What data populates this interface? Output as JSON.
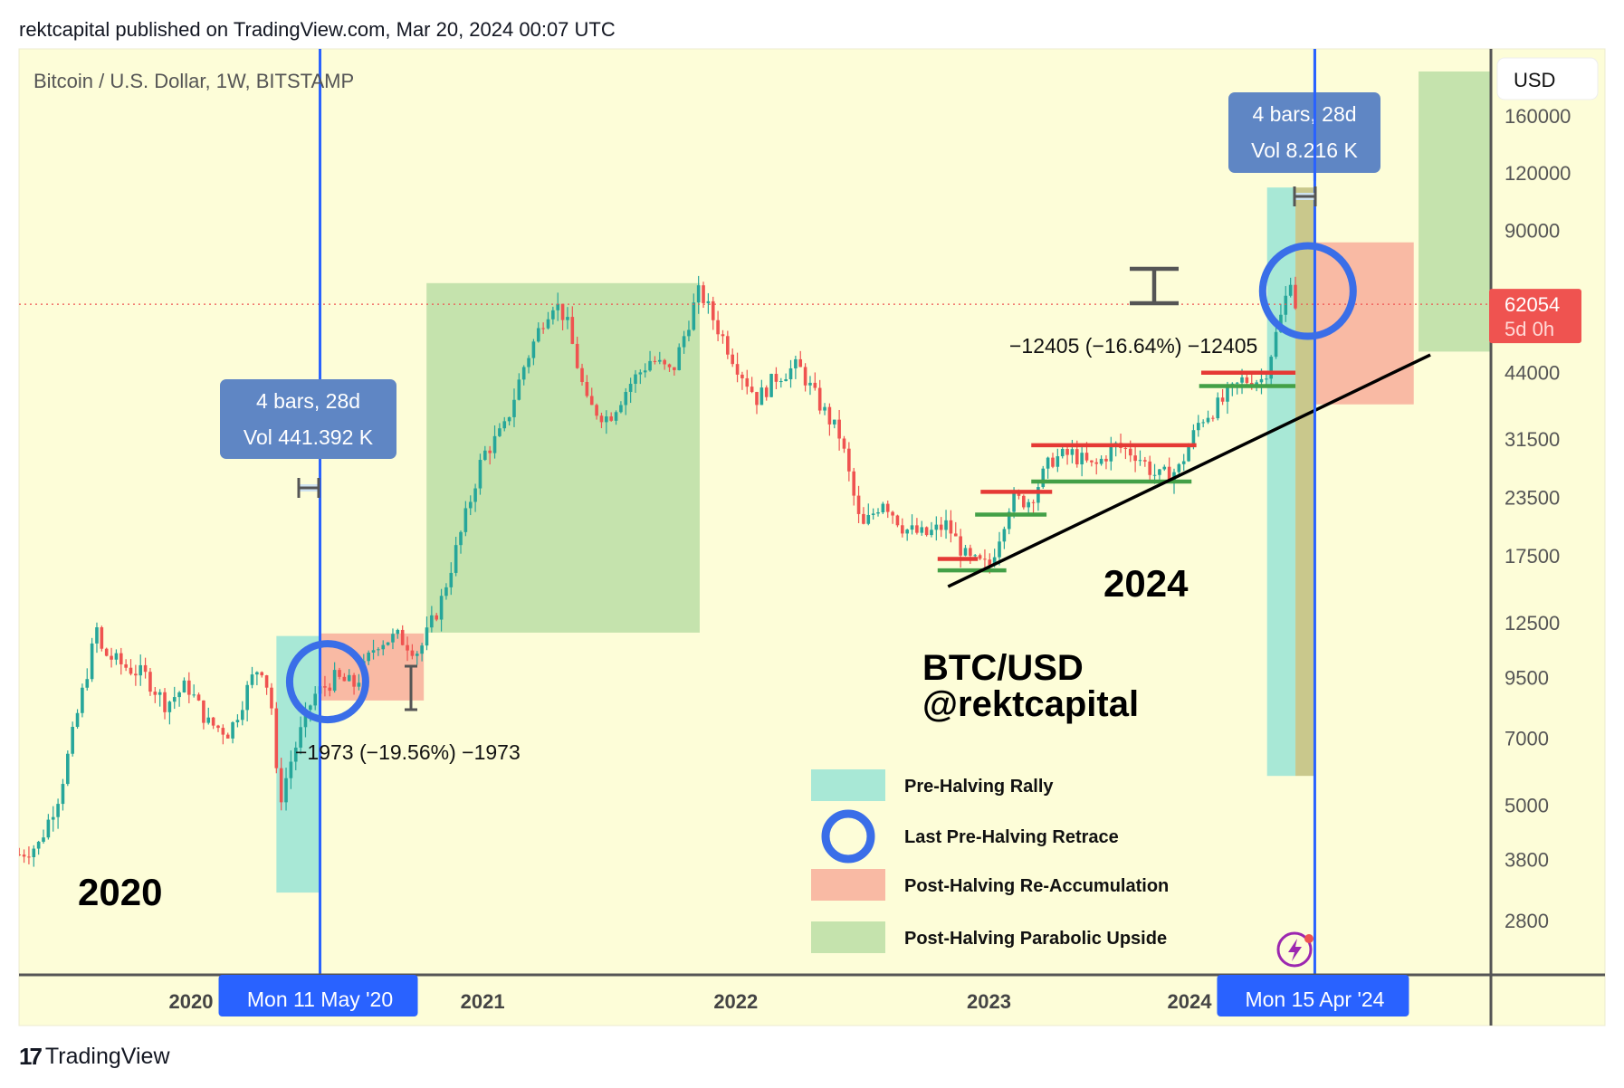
{
  "header": {
    "published": "rektcapital published on TradingView.com, Mar 20, 2024 00:07 UTC"
  },
  "footer": {
    "brand": "TradingView",
    "logo_icon": "tradingview-logo-icon"
  },
  "chart_data": {
    "type": "candlestick",
    "title": "Bitcoin / U.S. Dollar, 1W, BITSTAMP",
    "currency": "USD",
    "scale": "log",
    "ylim": [
      2400,
      200000
    ],
    "xlim": [
      "2019-03-01",
      "2025-01-10"
    ],
    "grid": false,
    "y_ticks": [
      160000,
      120000,
      90000,
      44000,
      31500,
      23500,
      17500,
      12500,
      9500,
      7000,
      5000,
      3800,
      2800
    ],
    "x_ticks": [
      "2020",
      "2021",
      "2022",
      "2023",
      "2024"
    ],
    "last_price": {
      "value": 62054,
      "label": "62054",
      "countdown": "5d 0h",
      "color": "#ef5350"
    },
    "colors": {
      "background": "#fdfdd8",
      "up": "#26a69a",
      "down": "#ef5350",
      "crosshair": "#2962ff",
      "circle": "#3a6ee8"
    },
    "price_anchors": [
      [
        "2019-03-04",
        3900
      ],
      [
        "2019-04-01",
        4100
      ],
      [
        "2019-05-01",
        5300
      ],
      [
        "2019-06-01",
        8550
      ],
      [
        "2019-06-26",
        12500
      ],
      [
        "2019-07-01",
        10800
      ],
      [
        "2019-08-01",
        10080
      ],
      [
        "2019-09-01",
        9600
      ],
      [
        "2019-10-01",
        8300
      ],
      [
        "2019-11-01",
        9150
      ],
      [
        "2019-12-01",
        7550
      ],
      [
        "2020-01-01",
        7200
      ],
      [
        "2020-02-01",
        9350
      ],
      [
        "2020-02-15",
        10200
      ],
      [
        "2020-03-01",
        8550
      ],
      [
        "2020-03-12",
        5000
      ],
      [
        "2020-04-01",
        6400
      ],
      [
        "2020-05-01",
        8630
      ],
      [
        "2020-06-01",
        9450
      ],
      [
        "2020-07-01",
        9140
      ],
      [
        "2020-08-01",
        11350
      ],
      [
        "2020-09-01",
        11650
      ],
      [
        "2020-10-01",
        10780
      ],
      [
        "2020-11-01",
        13800
      ],
      [
        "2020-12-01",
        19700
      ],
      [
        "2021-01-01",
        28990
      ],
      [
        "2021-02-01",
        33100
      ],
      [
        "2021-03-01",
        45200
      ],
      [
        "2021-04-01",
        58800
      ],
      [
        "2021-04-14",
        63000
      ],
      [
        "2021-05-01",
        57700
      ],
      [
        "2021-06-01",
        37300
      ],
      [
        "2021-07-01",
        35000
      ],
      [
        "2021-08-01",
        41500
      ],
      [
        "2021-09-01",
        47100
      ],
      [
        "2021-10-01",
        43800
      ],
      [
        "2021-11-01",
        61300
      ],
      [
        "2021-11-10",
        66500
      ],
      [
        "2021-12-01",
        57000
      ],
      [
        "2022-01-01",
        46200
      ],
      [
        "2022-02-01",
        38500
      ],
      [
        "2022-03-01",
        43200
      ],
      [
        "2022-04-01",
        45500
      ],
      [
        "2022-05-01",
        37700
      ],
      [
        "2022-06-01",
        31800
      ],
      [
        "2022-07-01",
        19900
      ],
      [
        "2022-08-01",
        23300
      ],
      [
        "2022-09-01",
        20050
      ],
      [
        "2022-10-01",
        19400
      ],
      [
        "2022-11-01",
        20500
      ],
      [
        "2022-12-01",
        17150
      ],
      [
        "2023-01-01",
        16550
      ],
      [
        "2023-02-01",
        23100
      ],
      [
        "2023-03-01",
        23150
      ],
      [
        "2023-04-01",
        28450
      ],
      [
        "2023-05-01",
        29250
      ],
      [
        "2023-06-01",
        27200
      ],
      [
        "2023-07-01",
        30450
      ],
      [
        "2023-08-01",
        29250
      ],
      [
        "2023-09-01",
        25950
      ],
      [
        "2023-10-01",
        26950
      ],
      [
        "2023-11-01",
        34650
      ],
      [
        "2023-12-01",
        37700
      ],
      [
        "2024-01-01",
        42300
      ],
      [
        "2024-02-01",
        42550
      ],
      [
        "2024-03-01",
        61150
      ],
      [
        "2024-03-11",
        71500
      ],
      [
        "2024-03-18",
        62054
      ]
    ],
    "zones": [
      {
        "name": "Pre-Halving Rally 2020",
        "from": "2020-03-09",
        "to": "2020-05-11",
        "top": 11700,
        "bottom": 3220,
        "color": "#a8e8d6"
      },
      {
        "name": "Post-Halving Re-Accumulation 2020",
        "from": "2020-05-11",
        "to": "2020-10-08",
        "top": 11850,
        "bottom": 8460,
        "color": "#f9baa4"
      },
      {
        "name": "Post-Halving Parabolic Upside 2021",
        "from": "2020-10-12",
        "to": "2021-11-10",
        "top": 69000,
        "bottom": 11900,
        "color": "#c5e3ad"
      },
      {
        "name": "Pre-Halving Rally 2024",
        "from": "2024-02-06",
        "to": "2024-03-18",
        "top": 111600,
        "bottom": 5790,
        "color": "#a8e8d6"
      },
      {
        "name": "Range 2024",
        "from": "2024-03-18",
        "to": "2024-04-15",
        "top": 111600,
        "bottom": 5790,
        "color": "#c9c88c"
      },
      {
        "name": "Post-Halving Re-Accumulation 2024",
        "from": "2024-04-15",
        "to": "2024-09-05",
        "top": 84700,
        "bottom": 37500,
        "color": "#f9baa4"
      },
      {
        "name": "Post-Halving Parabolic Upside 2024",
        "from": "2024-09-12",
        "to": "2024-12-24",
        "top": 200000,
        "bottom": 48900,
        "color": "#c5e3ad"
      }
    ],
    "retrace_circles": [
      {
        "date": "2020-05-22",
        "price": 9300
      },
      {
        "date": "2024-04-05",
        "price": 66300
      }
    ],
    "trendline": {
      "from": [
        "2022-11-03",
        15000
      ],
      "to": [
        "2024-09-29",
        48100
      ],
      "color": "#000000"
    },
    "levels": [
      {
        "from": "2022-10-19",
        "to": "2022-12-16",
        "price": 17240,
        "color": "#e53935"
      },
      {
        "from": "2022-10-19",
        "to": "2023-01-26",
        "price": 16280,
        "color": "#43a047"
      },
      {
        "from": "2022-12-20",
        "to": "2023-04-02",
        "price": 24150,
        "color": "#e53935"
      },
      {
        "from": "2022-12-12",
        "to": "2023-03-25",
        "price": 21540,
        "color": "#43a047"
      },
      {
        "from": "2023-03-03",
        "to": "2023-10-27",
        "price": 30540,
        "color": "#e53935"
      },
      {
        "from": "2023-03-03",
        "to": "2023-10-20",
        "price": 25440,
        "color": "#43a047"
      },
      {
        "from": "2023-11-03",
        "to": "2024-03-18",
        "price": 43970,
        "color": "#e53935"
      },
      {
        "from": "2023-10-31",
        "to": "2024-03-18",
        "price": 41120,
        "color": "#43a047"
      }
    ],
    "halving_markers": [
      {
        "date": "2020-05-11",
        "label": "Mon 11 May '20"
      },
      {
        "date": "2024-04-15",
        "label": "Mon 15 Apr '24"
      }
    ],
    "measurements": [
      {
        "bars": "4 bars, 28d",
        "volume": "Vol 441.392 K",
        "change": "−1973 (−19.56%) −1973"
      },
      {
        "bars": "4 bars, 28d",
        "volume": "Vol 8.216 K",
        "change": "−12405 (−16.64%) −12405"
      }
    ],
    "annotations": {
      "cycle_2020": "2020",
      "cycle_2024": "2024",
      "pair": "BTC/USD",
      "author": "@rektcapital"
    },
    "legend": [
      {
        "label": "Pre-Halving Rally",
        "swatch": "rect",
        "color": "#a8e8d6"
      },
      {
        "label": "Last Pre-Halving Retrace",
        "swatch": "circle",
        "color": "#3a6ee8"
      },
      {
        "label": "Post-Halving Re-Accumulation",
        "swatch": "rect",
        "color": "#f9baa4"
      },
      {
        "label": "Post-Halving Parabolic Upside",
        "swatch": "rect",
        "color": "#c5e3ad"
      }
    ],
    "alert_icon": "lightning-alert-icon"
  }
}
